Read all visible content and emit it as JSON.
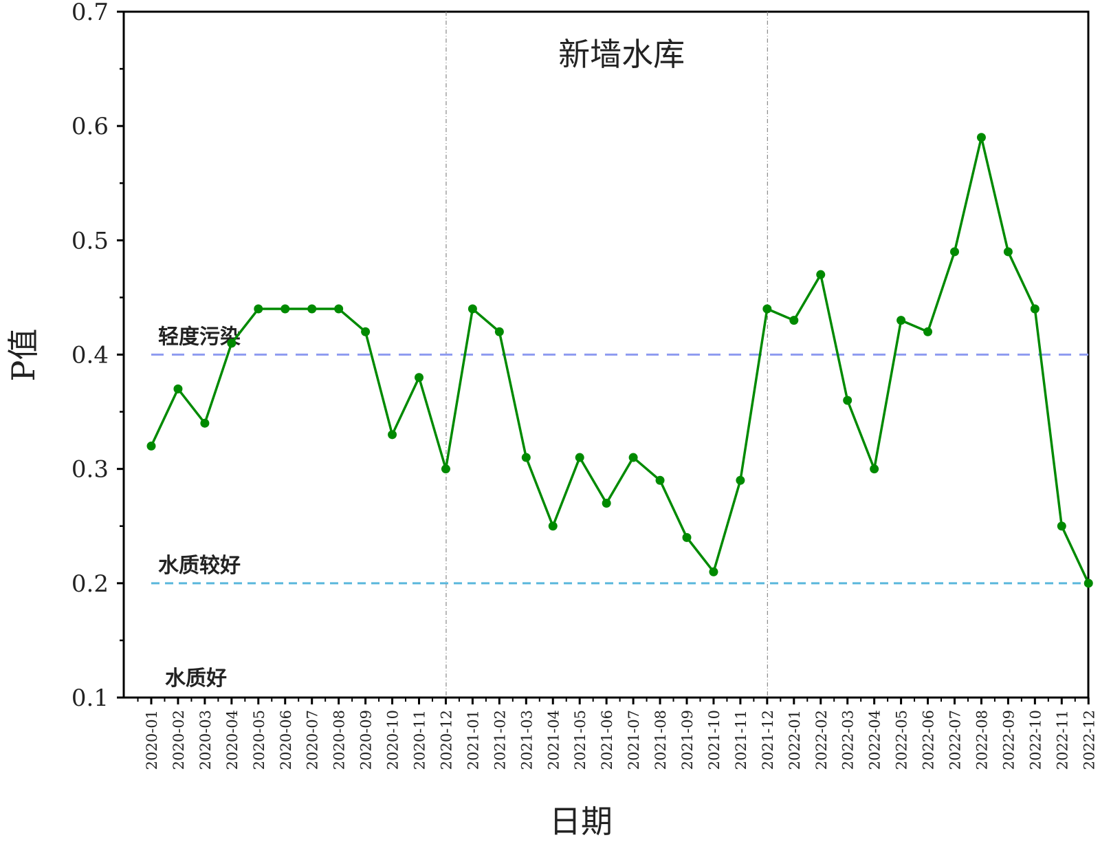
{
  "chart_data": {
    "type": "line",
    "title": "新墙水库",
    "xlabel": "日期",
    "ylabel": "P值",
    "ylim": [
      0.1,
      0.7
    ],
    "y_ticks": [
      "0.1",
      "0.2",
      "0.3",
      "0.4",
      "0.5",
      "0.6",
      "0.7"
    ],
    "grid": false,
    "categories": [
      "2020-01",
      "2020-02",
      "2020-03",
      "2020-04",
      "2020-05",
      "2020-06",
      "2020-07",
      "2020-08",
      "2020-09",
      "2020-10",
      "2020-11",
      "2020-12",
      "2021-01",
      "2021-02",
      "2021-03",
      "2021-04",
      "2021-05",
      "2021-06",
      "2021-07",
      "2021-08",
      "2021-09",
      "2021-10",
      "2021-11",
      "2021-12",
      "2022-01",
      "2022-02",
      "2022-03",
      "2022-04",
      "2022-05",
      "2022-06",
      "2022-07",
      "2022-08",
      "2022-09",
      "2022-10",
      "2022-11",
      "2022-12"
    ],
    "series": [
      {
        "color": "#008a00",
        "values": [
          0.32,
          0.37,
          0.34,
          0.41,
          0.44,
          0.44,
          0.44,
          0.44,
          0.42,
          0.33,
          0.38,
          0.3,
          0.44,
          0.42,
          0.31,
          0.25,
          0.31,
          0.27,
          0.31,
          0.29,
          0.24,
          0.21,
          0.29,
          0.44,
          0.43,
          0.47,
          0.36,
          0.3,
          0.43,
          0.42,
          0.49,
          0.59,
          0.49,
          0.44,
          0.25,
          0.2
        ]
      }
    ],
    "reference_lines": [
      {
        "label": "轻度污染",
        "value": 0.4,
        "color": "#8f9cf0"
      },
      {
        "label": "水质较好",
        "value": 0.2,
        "color": "#5ab7dc"
      },
      {
        "label": "水质好",
        "value": 0.1,
        "color": ""
      }
    ],
    "year_dividers": [
      "2020-12",
      "2021-12"
    ]
  }
}
